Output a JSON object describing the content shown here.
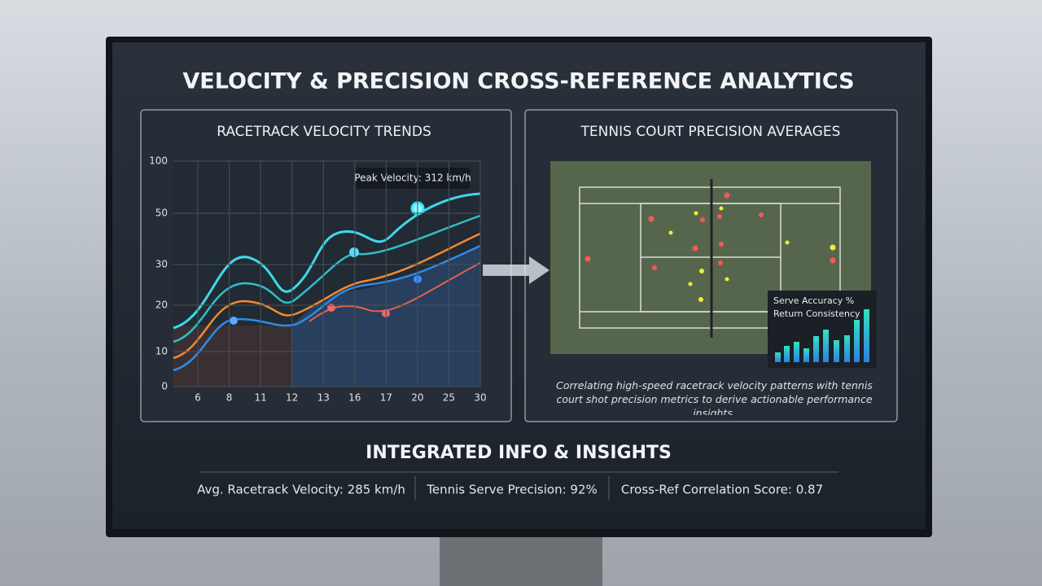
{
  "title": "VELOCITY & PRECISION CROSS-REFERENCE ANALYTICS",
  "left_panel": {
    "title": "RACETRACK VELOCITY TRENDS",
    "y_tick_labels": [
      "100",
      "50",
      "30",
      "20",
      "10",
      "0"
    ],
    "x_tick_labels": [
      "6",
      "8",
      "11",
      "12",
      "13",
      "16",
      "17",
      "20",
      "25",
      "30"
    ],
    "tooltip": "Peak Velocity: 312 km/h"
  },
  "right_panel": {
    "title": "TENNIS COURT PRECISION AVERAGES",
    "legend": [
      "Serve Accuracy %",
      "Return Consistency"
    ],
    "caption": "Correlating high-speed racetrack velocity patterns with tennis court shot precision metrics to derive actionable performance insights."
  },
  "insights": {
    "title": "INTEGRATED INFO & INSIGHTS",
    "stats": [
      "Avg. Racetrack Velocity: 285 km/h",
      "Tennis Serve Precision: 92%",
      "Cross-Ref Correlation Score: 0.87"
    ]
  }
}
